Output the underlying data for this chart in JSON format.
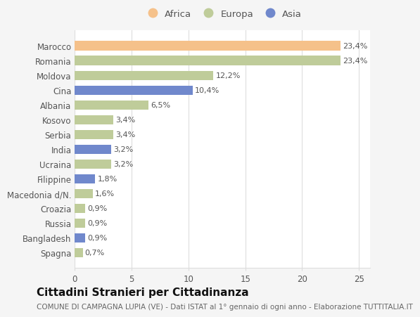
{
  "countries": [
    "Marocco",
    "Romania",
    "Moldova",
    "Cina",
    "Albania",
    "Kosovo",
    "Serbia",
    "India",
    "Ucraina",
    "Filippine",
    "Macedonia d/N.",
    "Croazia",
    "Russia",
    "Bangladesh",
    "Spagna"
  ],
  "values": [
    23.4,
    23.4,
    12.2,
    10.4,
    6.5,
    3.4,
    3.4,
    3.2,
    3.2,
    1.8,
    1.6,
    0.9,
    0.9,
    0.9,
    0.7
  ],
  "labels": [
    "23,4%",
    "23,4%",
    "12,2%",
    "10,4%",
    "6,5%",
    "3,4%",
    "3,4%",
    "3,2%",
    "3,2%",
    "1,8%",
    "1,6%",
    "0,9%",
    "0,9%",
    "0,9%",
    "0,7%"
  ],
  "categories": [
    "Africa",
    "Europa",
    "Asia"
  ],
  "bar_colors": [
    "#f5c18a",
    "#bfcc9a",
    "#bfcc9a",
    "#7088cc",
    "#bfcc9a",
    "#bfcc9a",
    "#bfcc9a",
    "#7088cc",
    "#bfcc9a",
    "#7088cc",
    "#bfcc9a",
    "#bfcc9a",
    "#bfcc9a",
    "#7088cc",
    "#bfcc9a"
  ],
  "legend_colors": [
    "#f5c18a",
    "#bfcc9a",
    "#7088cc"
  ],
  "xlim": [
    0,
    26
  ],
  "xticks": [
    0,
    5,
    10,
    15,
    20,
    25
  ],
  "title": "Cittadini Stranieri per Cittadinanza",
  "subtitle": "COMUNE DI CAMPAGNA LUPIA (VE) - Dati ISTAT al 1° gennaio di ogni anno - Elaborazione TUTTITALIA.IT",
  "background_color": "#f5f5f5",
  "plot_background": "#ffffff",
  "grid_color": "#dddddd",
  "title_fontsize": 11,
  "subtitle_fontsize": 7.5,
  "label_fontsize": 8,
  "tick_fontsize": 8.5,
  "legend_fontsize": 9.5
}
